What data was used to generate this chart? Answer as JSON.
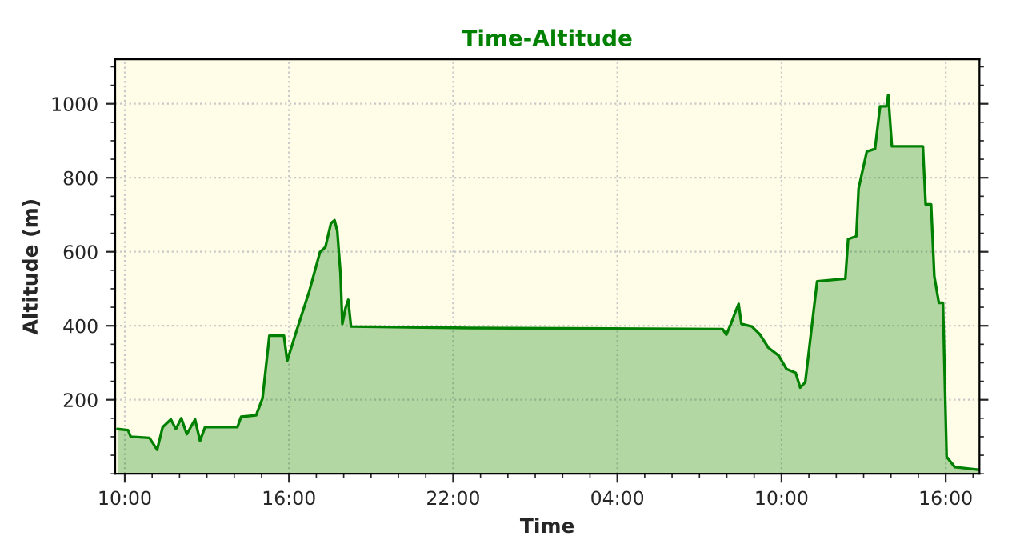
{
  "chart_data": {
    "type": "area",
    "title": "Time-Altitude",
    "xlabel": "Time",
    "ylabel": "Altitude (m)",
    "xlim": [
      "2000-01-01T09:39",
      "2000-01-02T17:14"
    ],
    "xticks": [
      {
        "value": "2000-01-01T10:00",
        "label": "10:00"
      },
      {
        "value": "2000-01-01T16:00",
        "label": "16:00"
      },
      {
        "value": "2000-01-01T22:00",
        "label": "22:00"
      },
      {
        "value": "2000-01-02T04:00",
        "label": "04:00"
      },
      {
        "value": "2000-01-02T10:00",
        "label": "10:00"
      },
      {
        "value": "2000-01-02T16:00",
        "label": "16:00"
      }
    ],
    "ylim": [
      0,
      1120
    ],
    "yticks": [
      200,
      400,
      600,
      800,
      1000
    ],
    "grid": true,
    "line_style": "solid",
    "series": [
      {
        "color": "#008000",
        "x": [
          "2000-01-01T09:44",
          "2000-01-01T10:07",
          "2000-01-01T10:13",
          "2000-01-01T10:54",
          "2000-01-01T11:11",
          "2000-01-01T11:23",
          "2000-01-01T11:41",
          "2000-01-01T11:52",
          "2000-01-01T12:04",
          "2000-01-01T12:16",
          "2000-01-01T12:34",
          "2000-01-01T12:45",
          "2000-01-01T12:56",
          "2000-01-01T14:07",
          "2000-01-01T14:15",
          "2000-01-01T14:48",
          "2000-01-01T15:02",
          "2000-01-01T15:17",
          "2000-01-01T15:49",
          "2000-01-01T15:56",
          "2000-01-01T16:16",
          "2000-01-01T16:44",
          "2000-01-01T17:08",
          "2000-01-01T17:20",
          "2000-01-01T17:32",
          "2000-01-01T17:40",
          "2000-01-01T17:46",
          "2000-01-01T17:53",
          "2000-01-01T17:57",
          "2000-01-01T18:04",
          "2000-01-01T18:10",
          "2000-01-01T18:16",
          "2000-01-01T22:35",
          "2000-01-02T07:51",
          "2000-01-02T07:59",
          "2000-01-02T08:09",
          "2000-01-02T08:20",
          "2000-01-02T08:26",
          "2000-01-02T08:32",
          "2000-01-02T08:55",
          "2000-01-02T09:13",
          "2000-01-02T09:31",
          "2000-01-02T09:54",
          "2000-01-02T10:11",
          "2000-01-02T10:31",
          "2000-01-02T10:41",
          "2000-01-02T10:52",
          "2000-01-02T11:18",
          "2000-01-02T12:20",
          "2000-01-02T12:26",
          "2000-01-02T12:44",
          "2000-01-02T12:49",
          "2000-01-02T13:07",
          "2000-01-02T13:25",
          "2000-01-02T13:36",
          "2000-01-02T13:50",
          "2000-01-02T13:54",
          "2000-01-02T14:02",
          "2000-01-02T15:10",
          "2000-01-02T15:16",
          "2000-01-02T15:28",
          "2000-01-02T15:35",
          "2000-01-02T15:45",
          "2000-01-02T15:54",
          "2000-01-02T16:02",
          "2000-01-02T16:20",
          "2000-01-02T17:12"
        ],
        "values": [
          121,
          118,
          100,
          97,
          65,
          126,
          147,
          121,
          150,
          107,
          147,
          89,
          126,
          126,
          154,
          158,
          204,
          373,
          373,
          305,
          384,
          491,
          599,
          613,
          677,
          685,
          656,
          541,
          405,
          448,
          470,
          398,
          394,
          391,
          376,
          405,
          441,
          459,
          405,
          398,
          376,
          341,
          319,
          283,
          273,
          233,
          247,
          520,
          527,
          634,
          642,
          771,
          871,
          878,
          993,
          993,
          1024,
          885,
          885,
          728,
          728,
          534,
          462,
          462,
          46,
          18,
          11
        ]
      }
    ]
  }
}
